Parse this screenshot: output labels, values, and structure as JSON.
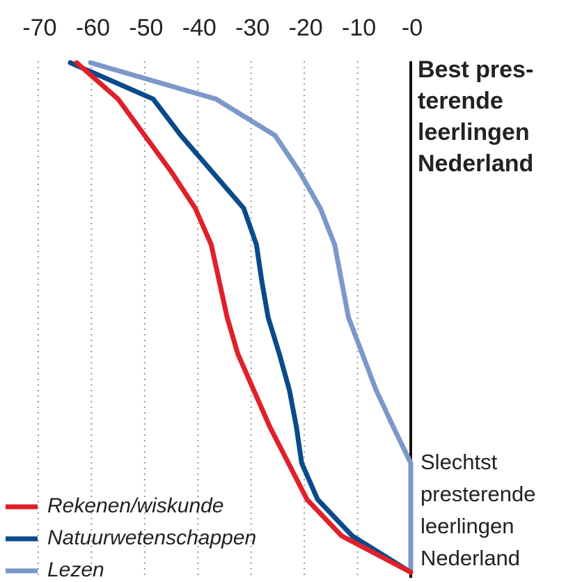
{
  "chart_data": {
    "type": "line",
    "orientation": "horizontal",
    "categories": [
      null,
      null,
      null,
      null,
      null,
      null,
      null,
      null,
      null,
      null,
      null,
      null,
      null,
      null,
      null
    ],
    "series": [
      {
        "name": "Rekenen/wiskunde",
        "color": "#e0202a",
        "values": [
          -62.8,
          -55,
          -50,
          -45,
          -40.5,
          -37.5,
          -36,
          -34.5,
          -32.5,
          -29.5,
          -26.5,
          -23,
          -19.5,
          -13,
          0
        ]
      },
      {
        "name": "Natuurwetenschappen",
        "color": "#0a4a8a",
        "values": [
          -64,
          -48.4,
          -43.2,
          -37.3,
          -31.4,
          -29,
          -28,
          -26.8,
          -24.7,
          -22.8,
          -21.5,
          -20.5,
          -17.5,
          -11,
          0
        ]
      },
      {
        "name": "Lezen",
        "color": "#7b98c8",
        "values": [
          -60.2,
          -36.6,
          -25.5,
          -20.9,
          -17,
          -14.3,
          -13,
          -11.7,
          -9.1,
          -6.5,
          -3.3,
          0,
          0,
          0,
          0
        ]
      }
    ],
    "xlim": [
      -70,
      0
    ],
    "xticks": [
      -70,
      -60,
      -50,
      -40,
      -30,
      -20,
      -10,
      {
        "value": 0,
        "label": "-0"
      }
    ],
    "grid": true,
    "top_label": [
      "Best pres-",
      "terende",
      "leerlingen",
      "Nederland"
    ],
    "bottom_label": [
      "Slechtst",
      "presterende",
      "leerlingen",
      "Nederland"
    ],
    "legend": "lower left"
  }
}
